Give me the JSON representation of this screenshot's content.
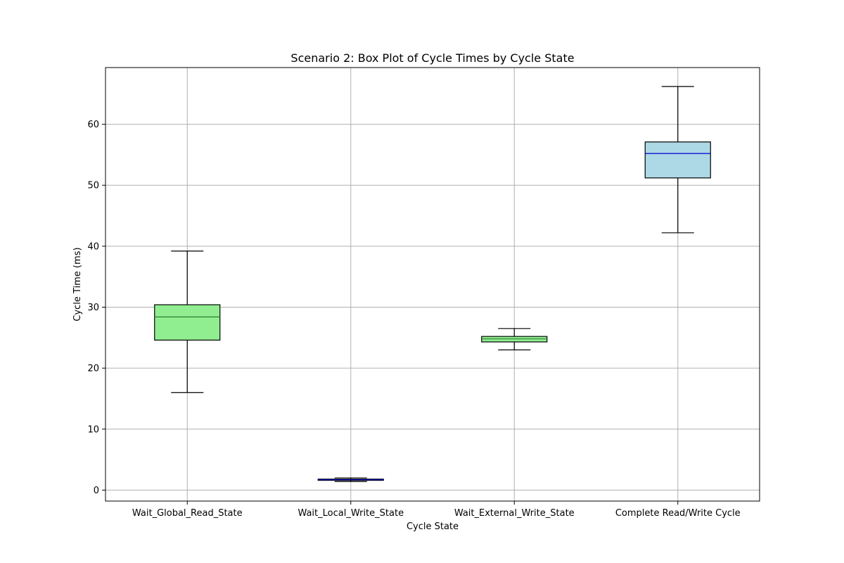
{
  "chart_data": {
    "type": "box",
    "title": "Scenario 2: Box Plot of Cycle Times by Cycle State",
    "xlabel": "Cycle State",
    "ylabel": "Cycle Time (ms)",
    "ylim": [
      -1.8,
      69.3
    ],
    "yticks": [
      0,
      10,
      20,
      30,
      40,
      50,
      60
    ],
    "grid": true,
    "categories": [
      "Wait_Global_Read_State",
      "Wait_Local_Write_State",
      "Wait_External_Write_State",
      "Complete Read/Write Cycle"
    ],
    "boxes": [
      {
        "whisker_low": 16.0,
        "q1": 24.6,
        "median": 28.4,
        "q3": 30.4,
        "whisker_high": 39.2,
        "fill": "#90ee90",
        "median_color": "#2e7d32"
      },
      {
        "whisker_low": 1.4,
        "q1": 1.6,
        "median": 1.7,
        "q3": 1.8,
        "whisker_high": 2.0,
        "fill": "#add8e6",
        "median_color": "#0000cc"
      },
      {
        "whisker_low": 23.0,
        "q1": 24.3,
        "median": 24.8,
        "q3": 25.2,
        "whisker_high": 26.5,
        "fill": "#90ee90",
        "median_color": "#2e7d32"
      },
      {
        "whisker_low": 42.2,
        "q1": 51.2,
        "median": 55.2,
        "q3": 57.1,
        "whisker_high": 66.2,
        "fill": "#add8e6",
        "median_color": "#0000cc"
      }
    ]
  },
  "colors": {
    "grid": "#b0b0b0",
    "axis": "#000000",
    "whisker": "#000000"
  }
}
